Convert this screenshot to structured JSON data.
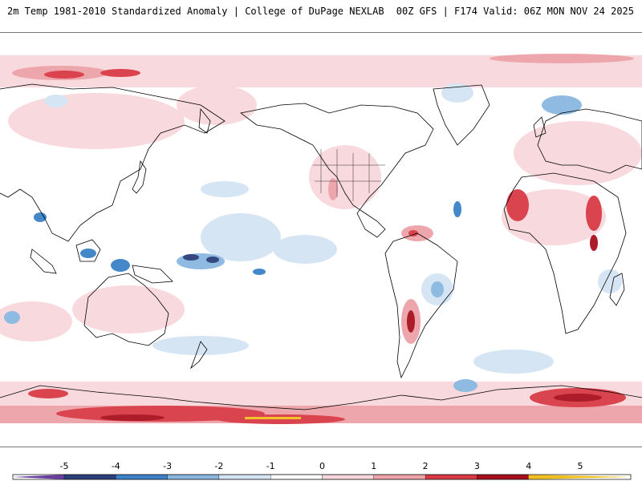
{
  "header": {
    "title": "2m Temp 1981-2010 Standardized Anomaly | College of DuPage NEXLAB",
    "run_info": "00Z GFS | F174 Valid: 06Z MON NOV 24 2025"
  },
  "colorbar": {
    "ticks": [
      "-5",
      "-4",
      "-3",
      "-2",
      "-1",
      "0",
      "1",
      "2",
      "3",
      "4",
      "5"
    ],
    "colors": {
      "min": "#6a3fa0",
      "n4": "#2b3f7a",
      "n3": "#3b82c8",
      "n2": "#8ab7e0",
      "n1": "#d4e4f4",
      "zero": "#ffffff",
      "p1": "#f8d8dc",
      "p2": "#eda3a8",
      "p3": "#d93a45",
      "p4": "#a8101e",
      "max": "#f0c020"
    }
  },
  "map": {
    "projection": "global equirectangular, Pacific-centered"
  }
}
